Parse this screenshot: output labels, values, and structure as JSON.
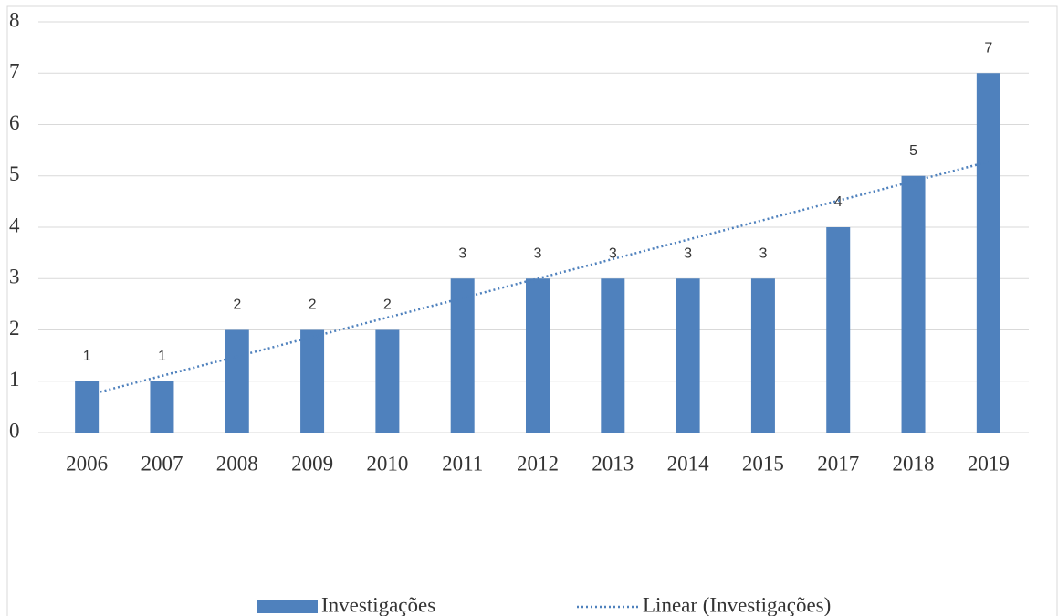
{
  "chart_data": {
    "type": "bar",
    "categories": [
      "2006",
      "2007",
      "2008",
      "2009",
      "2010",
      "2011",
      "2012",
      "2013",
      "2014",
      "2015",
      "2017",
      "2018",
      "2019"
    ],
    "series": [
      {
        "name": "Investigações",
        "color": "#4f81bd",
        "values": [
          1,
          1,
          2,
          2,
          2,
          3,
          3,
          3,
          3,
          3,
          4,
          5,
          7
        ]
      }
    ],
    "trendline": {
      "name": "Linear (Investigações)",
      "fit": "linear",
      "color": "#4f81bd"
    },
    "ylim": [
      0,
      8
    ],
    "yticks": [
      0,
      1,
      2,
      3,
      4,
      5,
      6,
      7,
      8
    ],
    "grid": true,
    "data_labels": true,
    "legend": "bottom"
  }
}
